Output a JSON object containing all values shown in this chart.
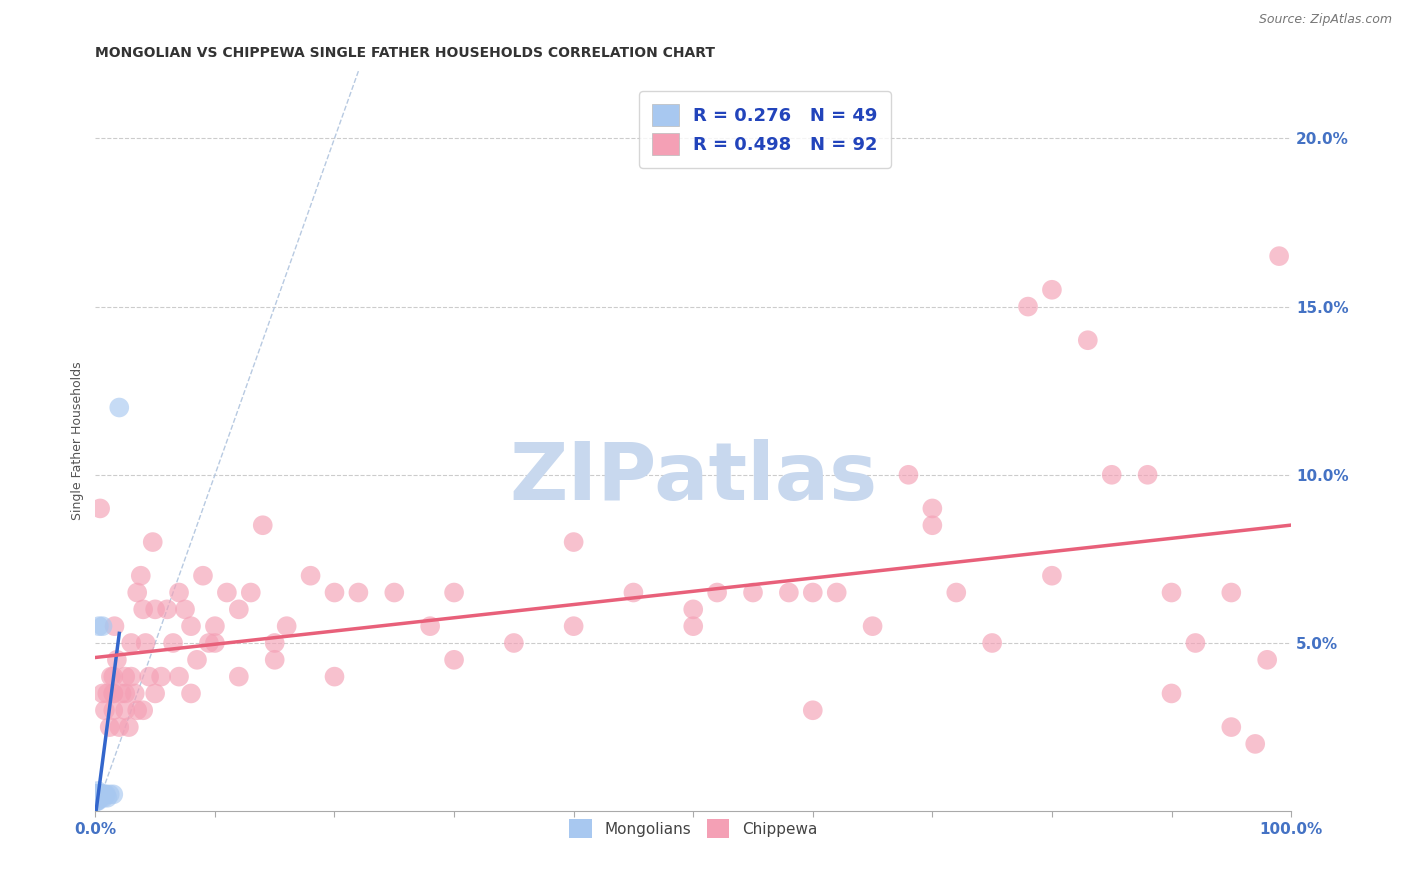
{
  "title": "MONGOLIAN VS CHIPPEWA SINGLE FATHER HOUSEHOLDS CORRELATION CHART",
  "source": "Source: ZipAtlas.com",
  "tick_color": "#4472C4",
  "ylabel": "Single Father Households",
  "xlim": [
    0,
    1.0
  ],
  "ylim": [
    0,
    0.22
  ],
  "x_ticks": [
    0.0,
    0.1,
    0.2,
    0.3,
    0.4,
    0.5,
    0.6,
    0.7,
    0.8,
    0.9,
    1.0
  ],
  "x_tick_labels_show": {
    "0.0": "0.0%",
    "1.0": "100.0%"
  },
  "y_ticks": [
    0.0,
    0.05,
    0.1,
    0.15,
    0.2
  ],
  "y_tick_labels": [
    "",
    "5.0%",
    "10.0%",
    "15.0%",
    "20.0%"
  ],
  "mongolian_color": "#A8C8F0",
  "chippewa_color": "#F4A0B5",
  "mongolian_line_color": "#3366CC",
  "chippewa_line_color": "#E8607A",
  "diagonal_color": "#B0C4DE",
  "background_color": "#FFFFFF",
  "grid_color": "#CCCCCC",
  "mongolian_R": 0.276,
  "mongolian_N": 49,
  "chippewa_R": 0.498,
  "chippewa_N": 92,
  "watermark_text": "ZIPatlas",
  "watermark_color": "#C8D8EE",
  "title_fontsize": 10,
  "axis_label_fontsize": 9,
  "tick_fontsize": 11,
  "legend_fontsize": 13,
  "mongolian_x": [
    0.001,
    0.001,
    0.001,
    0.001,
    0.001,
    0.001,
    0.001,
    0.001,
    0.001,
    0.001,
    0.002,
    0.002,
    0.002,
    0.002,
    0.002,
    0.002,
    0.002,
    0.002,
    0.002,
    0.002,
    0.003,
    0.003,
    0.003,
    0.003,
    0.003,
    0.003,
    0.004,
    0.004,
    0.004,
    0.005,
    0.005,
    0.006,
    0.006,
    0.007,
    0.007,
    0.008,
    0.009,
    0.01,
    0.012,
    0.015,
    0.001,
    0.001,
    0.002,
    0.002,
    0.003,
    0.003,
    0.004,
    0.005,
    0.02
  ],
  "mongolian_y": [
    0.005,
    0.005,
    0.004,
    0.003,
    0.005,
    0.004,
    0.005,
    0.003,
    0.005,
    0.004,
    0.005,
    0.004,
    0.005,
    0.005,
    0.004,
    0.005,
    0.003,
    0.005,
    0.004,
    0.005,
    0.005,
    0.004,
    0.005,
    0.004,
    0.005,
    0.005,
    0.005,
    0.004,
    0.005,
    0.005,
    0.004,
    0.055,
    0.005,
    0.005,
    0.004,
    0.005,
    0.005,
    0.004,
    0.005,
    0.005,
    0.005,
    0.004,
    0.006,
    0.005,
    0.055,
    0.005,
    0.005,
    0.005,
    0.12
  ],
  "chippewa_x": [
    0.004,
    0.006,
    0.008,
    0.01,
    0.012,
    0.013,
    0.015,
    0.015,
    0.016,
    0.018,
    0.02,
    0.022,
    0.025,
    0.025,
    0.028,
    0.03,
    0.03,
    0.033,
    0.035,
    0.038,
    0.04,
    0.042,
    0.045,
    0.048,
    0.05,
    0.055,
    0.06,
    0.065,
    0.07,
    0.075,
    0.08,
    0.085,
    0.09,
    0.095,
    0.1,
    0.11,
    0.12,
    0.13,
    0.14,
    0.15,
    0.16,
    0.18,
    0.2,
    0.22,
    0.25,
    0.28,
    0.3,
    0.35,
    0.4,
    0.45,
    0.5,
    0.52,
    0.55,
    0.58,
    0.6,
    0.62,
    0.65,
    0.68,
    0.7,
    0.72,
    0.75,
    0.78,
    0.8,
    0.83,
    0.85,
    0.88,
    0.9,
    0.92,
    0.95,
    0.97,
    0.98,
    0.99,
    0.015,
    0.025,
    0.035,
    0.05,
    0.07,
    0.1,
    0.15,
    0.2,
    0.3,
    0.4,
    0.5,
    0.6,
    0.7,
    0.8,
    0.9,
    0.95,
    0.015,
    0.04,
    0.08,
    0.12
  ],
  "chippewa_y": [
    0.09,
    0.035,
    0.03,
    0.035,
    0.025,
    0.04,
    0.035,
    0.04,
    0.055,
    0.045,
    0.025,
    0.035,
    0.035,
    0.04,
    0.025,
    0.04,
    0.05,
    0.035,
    0.03,
    0.07,
    0.06,
    0.05,
    0.04,
    0.08,
    0.06,
    0.04,
    0.06,
    0.05,
    0.04,
    0.06,
    0.055,
    0.045,
    0.07,
    0.05,
    0.05,
    0.065,
    0.06,
    0.065,
    0.085,
    0.05,
    0.055,
    0.07,
    0.065,
    0.065,
    0.065,
    0.055,
    0.065,
    0.05,
    0.08,
    0.065,
    0.055,
    0.065,
    0.065,
    0.065,
    0.065,
    0.065,
    0.055,
    0.1,
    0.085,
    0.065,
    0.05,
    0.15,
    0.155,
    0.14,
    0.1,
    0.1,
    0.065,
    0.05,
    0.065,
    0.02,
    0.045,
    0.165,
    0.03,
    0.03,
    0.065,
    0.035,
    0.065,
    0.055,
    0.045,
    0.04,
    0.045,
    0.055,
    0.06,
    0.03,
    0.09,
    0.07,
    0.035,
    0.025,
    0.035,
    0.03,
    0.035,
    0.04
  ]
}
